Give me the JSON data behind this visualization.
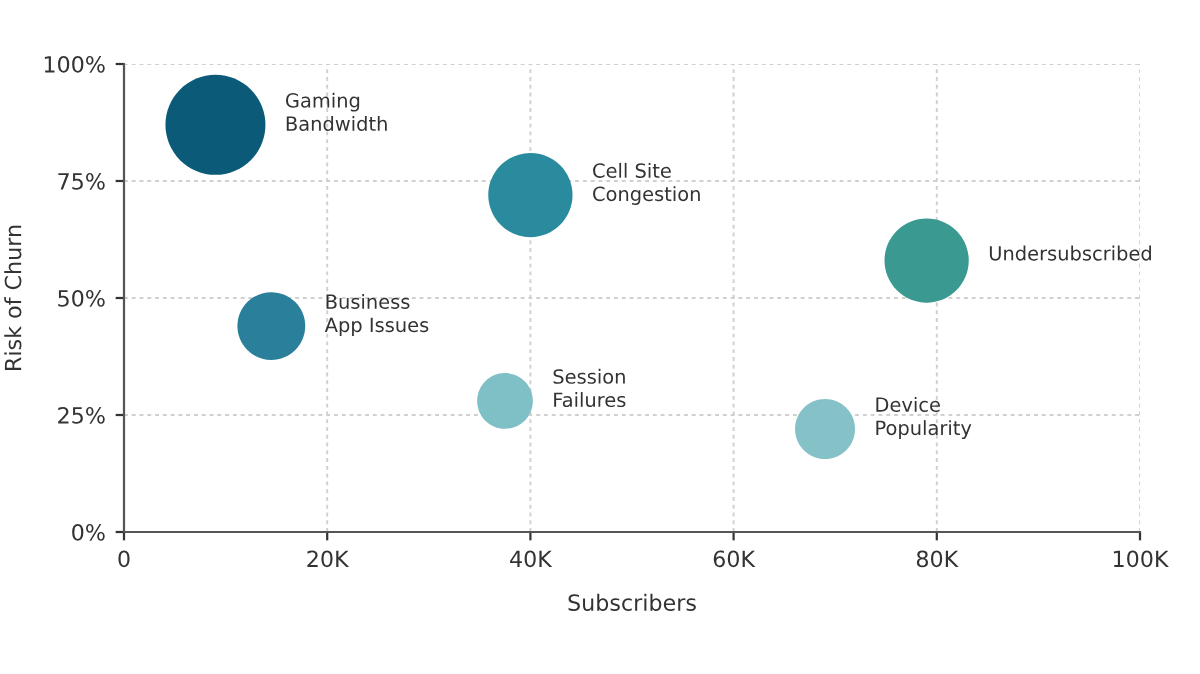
{
  "chart_data": {
    "type": "bubble",
    "xlabel": "Subscribers",
    "ylabel": "Risk of Churn",
    "xlim": [
      0,
      100000
    ],
    "ylim": [
      0,
      100
    ],
    "xticks": [
      0,
      {
        "value": 20000,
        "label": "20K"
      },
      {
        "value": 40000,
        "label": "40K"
      },
      {
        "value": 60000,
        "label": "60K"
      },
      {
        "value": 80000,
        "label": "80K"
      },
      {
        "value": 100000,
        "label": "100K"
      }
    ],
    "yticks": [
      {
        "value": 0,
        "label": "0%"
      },
      {
        "value": 25,
        "label": "25%"
      },
      {
        "value": 50,
        "label": "50%"
      },
      {
        "value": 75,
        "label": "75%"
      },
      {
        "value": 100,
        "label": "100%"
      }
    ],
    "grid": true,
    "marker": "circle",
    "series": [
      {
        "name": "Gaming\nBandwidth",
        "color": "#0b5a78",
        "x": [
          9000
        ],
        "values": [
          87
        ],
        "sizes": [
          1
        ]
      },
      {
        "name": "Cell Site\nCongestion",
        "color": "#2a8a9e",
        "x": [
          40000
        ],
        "values": [
          72
        ],
        "sizes": [
          0.71
        ]
      },
      {
        "name": "Business\nApp Issues",
        "color": "#2a7f9a",
        "x": [
          14500
        ],
        "values": [
          44
        ],
        "sizes": [
          0.46
        ]
      },
      {
        "name": "Session\nFailures",
        "color": "#7fbfc6",
        "x": [
          37500
        ],
        "values": [
          28
        ],
        "sizes": [
          0.31
        ]
      },
      {
        "name": "Undersubscribed",
        "color": "#3a9a92",
        "x": [
          79000
        ],
        "values": [
          58
        ],
        "sizes": [
          0.71
        ]
      },
      {
        "name": "Device\nPopularity",
        "color": "#85c2c8",
        "x": [
          69000
        ],
        "values": [
          22
        ],
        "sizes": [
          0.36
        ]
      }
    ]
  }
}
